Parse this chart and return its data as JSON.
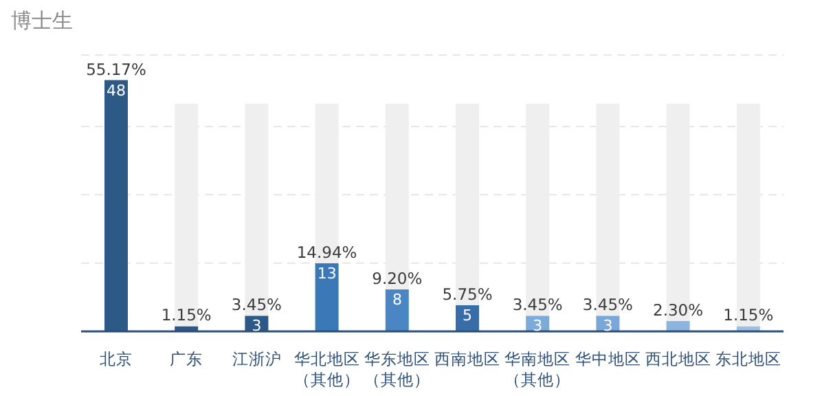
{
  "chart_data": {
    "type": "bar",
    "title": "博士生",
    "categories": [
      "北京",
      "广东",
      "江浙沪",
      "华北地区（其他）",
      "华东地区（其他）",
      "西南地区",
      "华南地区（其他）",
      "华中地区",
      "西北地区",
      "东北地区"
    ],
    "series": [
      {
        "colors": [
          "#2d5987",
          "#2d5987",
          "#2d5987",
          "#3b78b8",
          "#4a86c4",
          "#386ea8",
          "#7eaad9",
          "#7aa7d7",
          "#8bb4de",
          "#9cc0e5"
        ],
        "values": [
          55.17,
          1.15,
          3.45,
          14.94,
          9.2,
          5.75,
          3.45,
          3.45,
          2.3,
          1.15
        ],
        "value_labels": [
          "55.17%",
          "1.15%",
          "3.45%",
          "14.94%",
          "9.20%",
          "5.75%",
          "3.45%",
          "3.45%",
          "2.30%",
          "1.15%"
        ]
      },
      {
        "color": "#efefef",
        "values": [
          null,
          48.85,
          46.55,
          35.06,
          40.8,
          44.25,
          46.55,
          46.55,
          47.7,
          48.85
        ]
      }
    ],
    "stacked": true,
    "annotations": [
      {
        "text": "48",
        "x": "北京",
        "y": 55.17
      },
      {
        "text": "3",
        "x": "江浙沪",
        "y": 3.45
      },
      {
        "text": "13",
        "x": "华北地区（其他）",
        "y": 14.94
      },
      {
        "text": "8",
        "x": "华东地区（其他）",
        "y": 9.2
      },
      {
        "text": "5",
        "x": "西南地区",
        "y": 5.75
      },
      {
        "text": "3",
        "x": "华南地区（其他）",
        "y": 3.45
      },
      {
        "text": "3",
        "x": "华中地区",
        "y": 3.45
      }
    ],
    "tick_labels": "x",
    "grid": "y"
  }
}
